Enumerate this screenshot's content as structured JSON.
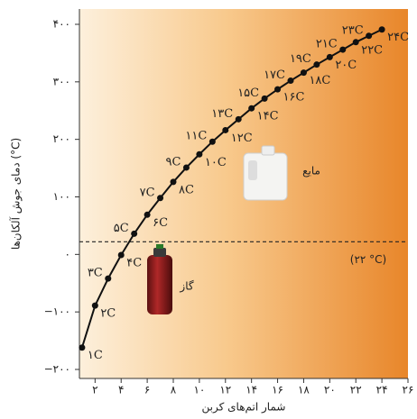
{
  "chart_data": {
    "type": "line",
    "x_label": "شمار اتم‌های کربن",
    "y_label": "دمای جوش آلکان‌ها (°C)",
    "x": [
      1,
      2,
      3,
      4,
      5,
      6,
      7,
      8,
      9,
      10,
      11,
      12,
      13,
      14,
      15,
      16,
      17,
      18,
      19,
      20,
      21,
      22,
      23,
      24
    ],
    "series": [
      {
        "color": "#111111",
        "values": [
          -162,
          -89,
          -42,
          -1,
          36,
          69,
          98,
          126,
          151,
          174,
          196,
          216,
          235,
          254,
          271,
          287,
          302,
          316,
          330,
          343,
          356,
          369,
          380,
          391
        ],
        "point_labels": [
          "۱C",
          "۲C",
          "۳C",
          "۴C",
          "۵C",
          "۶C",
          "۷C",
          "۸C",
          "۹C",
          "۱۰C",
          "۱۱C",
          "۱۲C",
          "۱۳C",
          "۱۴C",
          "۱۵C",
          "۱۶C",
          "۱۷C",
          "۱۸C",
          "۱۹C",
          "۲۰C",
          "۲۱C",
          "۲۲C",
          "۲۳C",
          "۲۴C"
        ]
      }
    ],
    "xlim": [
      0.8,
      26
    ],
    "xticks": [
      {
        "value": 2,
        "label": "۲"
      },
      {
        "value": 4,
        "label": "۴"
      },
      {
        "value": 6,
        "label": "۶"
      },
      {
        "value": 8,
        "label": "۸"
      },
      {
        "value": 10,
        "label": "۱۰"
      },
      {
        "value": 12,
        "label": "۱۲"
      },
      {
        "value": 14,
        "label": "۱۴"
      },
      {
        "value": 16,
        "label": "۱۶"
      },
      {
        "value": 18,
        "label": "۱۸"
      },
      {
        "value": 20,
        "label": "۲۰"
      },
      {
        "value": 22,
        "label": "۲۲"
      },
      {
        "value": 24,
        "label": "۲۴"
      },
      {
        "value": 26,
        "label": "۲۶"
      }
    ],
    "ylim": [
      -200,
      400
    ],
    "yticks": [
      {
        "value": -200,
        "label": "−۲۰۰"
      },
      {
        "value": -100,
        "label": "−۱۰۰"
      },
      {
        "value": 0,
        "label": "۰"
      },
      {
        "value": 100,
        "label": "۱۰۰"
      },
      {
        "value": 200,
        "label": "۲۰۰"
      },
      {
        "value": 300,
        "label": "۳۰۰"
      },
      {
        "value": 400,
        "label": "۴۰۰"
      }
    ],
    "reference_line": {
      "value": 22,
      "label": "(۲۲ °C)"
    },
    "annotations": [
      {
        "text": "مایع"
      },
      {
        "text": "گاز"
      }
    ]
  }
}
